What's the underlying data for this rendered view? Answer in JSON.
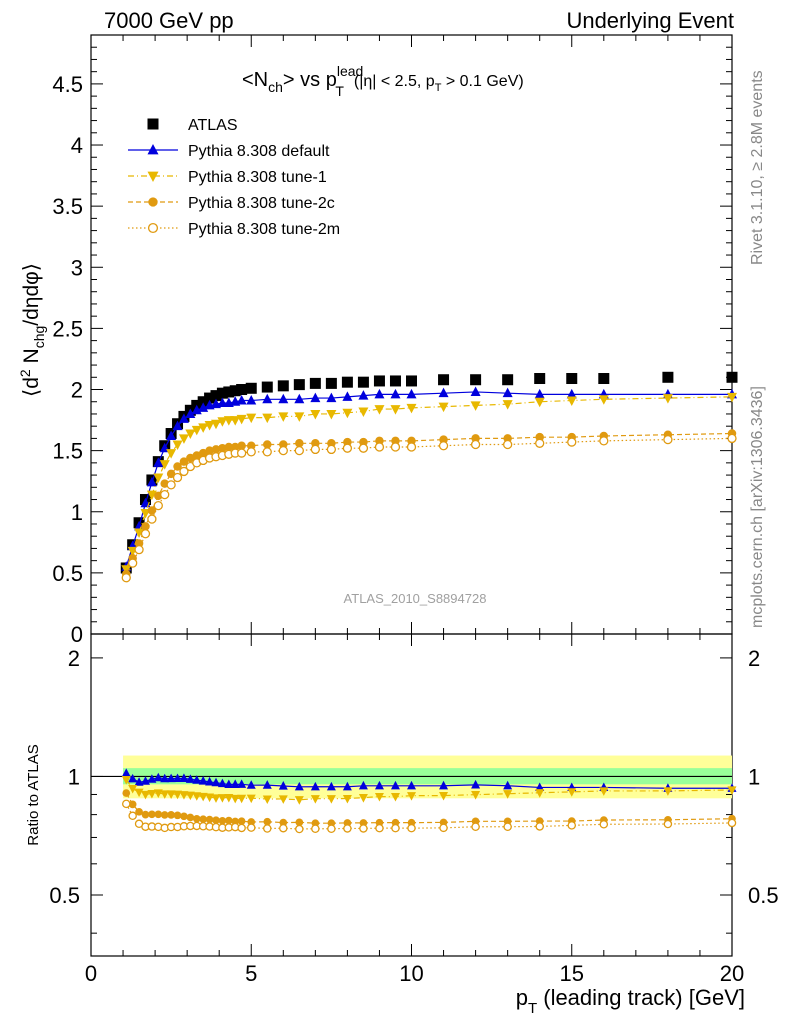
{
  "header": {
    "left": "7000 GeV pp",
    "right": "Underlying Event"
  },
  "side_labels": {
    "rivet": "Rivet 3.1.10, ≥ 2.8M events",
    "mcplots": "mcplots.cern.ch [arXiv:1306.3436]"
  },
  "main_panel": {
    "title_main": "<N",
    "title_sub1": "ch",
    "title_mid": "> vs p",
    "title_sup": "lead",
    "title_sub2": "T",
    "title_cuts": "(|η| < 2.5, p",
    "title_cuts_sub": "T",
    "title_cuts_end": " > 0.1 GeV)",
    "ylabel_a": "⟨d",
    "ylabel_sup": "2",
    "ylabel_b": " N",
    "ylabel_sub": "chg",
    "ylabel_c": "/dηdφ⟩",
    "watermark": "ATLAS_2010_S8894728",
    "yticks": [
      "0",
      "0.5",
      "1",
      "1.5",
      "2",
      "2.5",
      "3",
      "3.5",
      "4",
      "4.5"
    ]
  },
  "ratio_panel": {
    "ylabel": "Ratio to ATLAS",
    "yticks_left": [
      "0.5",
      "1",
      "2"
    ],
    "yticks_right": [
      "0.5",
      "1",
      "2"
    ]
  },
  "xaxis": {
    "label_a": "p",
    "label_sub": "T",
    "label_b": " (leading track) [GeV]",
    "ticks": [
      "0",
      "5",
      "10",
      "15",
      "20"
    ]
  },
  "legend": [
    {
      "label": "ATLAS",
      "color": "#000000",
      "marker": "square",
      "style": "none"
    },
    {
      "label": "Pythia 8.308 default",
      "color": "#0000dd",
      "marker": "triangle-up",
      "style": "solid"
    },
    {
      "label": "Pythia 8.308 tune-1",
      "color": "#e8b800",
      "marker": "triangle-down",
      "style": "dashdot"
    },
    {
      "label": "Pythia 8.308 tune-2c",
      "color": "#e09a10",
      "marker": "circle",
      "style": "dashed"
    },
    {
      "label": "Pythia 8.308 tune-2m",
      "color": "#e09a10",
      "marker": "circle-open",
      "style": "dotted"
    }
  ],
  "chart_data": {
    "type": "scatter",
    "title": "<Nch> vs pT lead (|η| < 2.5, pT > 0.1 GeV)",
    "xlabel": "pT (leading track) [GeV]",
    "ylabel": "⟨d2 Nchg/dηdφ⟩",
    "xlim": [
      0,
      20
    ],
    "ylim": [
      0,
      4.9
    ],
    "ratio_ylim_log": [
      0.35,
      2.3
    ],
    "ratio_ylabel": "Ratio to ATLAS",
    "x": [
      1.1,
      1.3,
      1.5,
      1.7,
      1.9,
      2.1,
      2.3,
      2.5,
      2.7,
      2.9,
      3.1,
      3.3,
      3.5,
      3.7,
      3.9,
      4.1,
      4.3,
      4.5,
      4.7,
      5.0,
      5.5,
      6.0,
      6.5,
      7.0,
      7.5,
      8.0,
      8.5,
      9.0,
      9.5,
      10.0,
      11.0,
      12.0,
      13.0,
      14.0,
      15.0,
      16.0,
      18.0,
      20.0
    ],
    "series": [
      {
        "name": "ATLAS",
        "values": [
          0.54,
          0.73,
          0.91,
          1.1,
          1.26,
          1.41,
          1.54,
          1.64,
          1.72,
          1.78,
          1.83,
          1.87,
          1.9,
          1.93,
          1.95,
          1.97,
          1.98,
          1.99,
          2.0,
          2.01,
          2.02,
          2.03,
          2.04,
          2.05,
          2.05,
          2.06,
          2.06,
          2.07,
          2.07,
          2.07,
          2.08,
          2.08,
          2.08,
          2.09,
          2.09,
          2.09,
          2.1,
          2.1
        ]
      },
      {
        "name": "Pythia 8.308 default",
        "values": [
          0.55,
          0.72,
          0.88,
          1.07,
          1.24,
          1.4,
          1.52,
          1.62,
          1.7,
          1.76,
          1.8,
          1.83,
          1.85,
          1.87,
          1.88,
          1.89,
          1.89,
          1.9,
          1.91,
          1.91,
          1.92,
          1.92,
          1.92,
          1.93,
          1.93,
          1.94,
          1.95,
          1.96,
          1.96,
          1.96,
          1.97,
          1.98,
          1.97,
          1.96,
          1.96,
          1.96,
          1.96,
          1.96
        ]
      },
      {
        "name": "Pythia 8.308 tune-1",
        "values": [
          0.53,
          0.68,
          0.83,
          0.99,
          1.14,
          1.28,
          1.39,
          1.48,
          1.55,
          1.6,
          1.64,
          1.67,
          1.69,
          1.71,
          1.72,
          1.74,
          1.75,
          1.75,
          1.76,
          1.77,
          1.77,
          1.78,
          1.78,
          1.8,
          1.8,
          1.81,
          1.82,
          1.84,
          1.84,
          1.85,
          1.86,
          1.87,
          1.88,
          1.9,
          1.91,
          1.92,
          1.93,
          1.94
        ]
      },
      {
        "name": "Pythia 8.308 tune-2c",
        "values": [
          0.49,
          0.62,
          0.74,
          0.88,
          1.01,
          1.13,
          1.23,
          1.31,
          1.37,
          1.41,
          1.44,
          1.46,
          1.48,
          1.5,
          1.51,
          1.52,
          1.53,
          1.53,
          1.54,
          1.54,
          1.55,
          1.55,
          1.56,
          1.56,
          1.56,
          1.57,
          1.57,
          1.58,
          1.58,
          1.58,
          1.59,
          1.6,
          1.6,
          1.61,
          1.61,
          1.62,
          1.63,
          1.64
        ]
      },
      {
        "name": "Pythia 8.308 tune-2m",
        "values": [
          0.46,
          0.58,
          0.69,
          0.82,
          0.94,
          1.05,
          1.14,
          1.22,
          1.28,
          1.33,
          1.37,
          1.4,
          1.42,
          1.44,
          1.45,
          1.46,
          1.47,
          1.48,
          1.48,
          1.49,
          1.49,
          1.5,
          1.5,
          1.51,
          1.51,
          1.52,
          1.52,
          1.53,
          1.53,
          1.53,
          1.54,
          1.55,
          1.55,
          1.56,
          1.57,
          1.58,
          1.59,
          1.6
        ]
      }
    ]
  }
}
